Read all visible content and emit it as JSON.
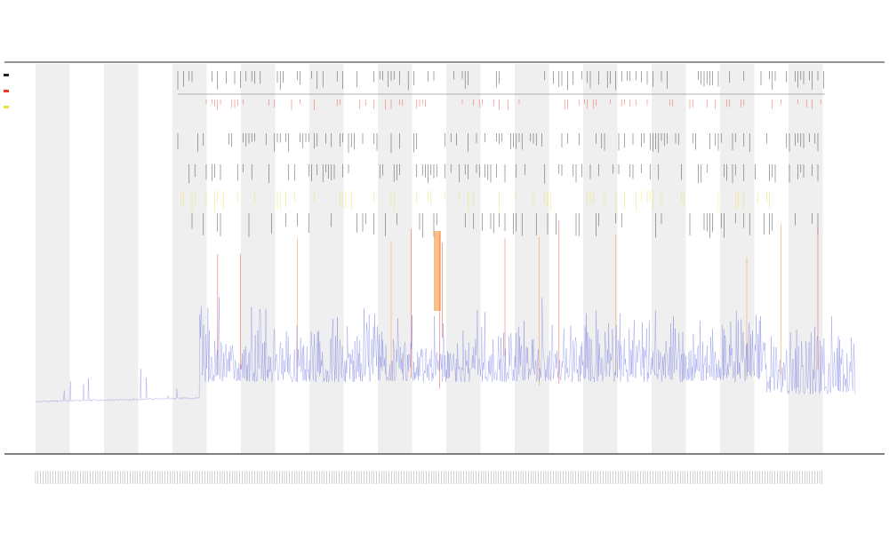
{
  "chart_data": {
    "type": "line",
    "title": "",
    "subtitle_lines": [
      "",
      ""
    ],
    "xlabel": "",
    "ylabel": "",
    "grid": false,
    "legend_position": "top-left",
    "colors": {
      "signal": "#5a62e0",
      "stripe": "#efefef",
      "tick_black": "#222222",
      "tick_red": "#e83a2a",
      "tick_orange": "#f08a2a",
      "tick_yellow": "#e6e040",
      "axis": "#333333"
    },
    "shaded_band_count": 12,
    "legend": [
      {
        "name": "",
        "color": "#222222"
      },
      {
        "name": "",
        "color": "#e83a2a"
      },
      {
        "name": "",
        "color": "#e6e040"
      }
    ],
    "series": [
      {
        "name": "",
        "color": "#5a62e0",
        "baseline_low": 0.1,
        "baseline_high": 0.2,
        "step_at_fraction": 0.2
      }
    ]
  }
}
